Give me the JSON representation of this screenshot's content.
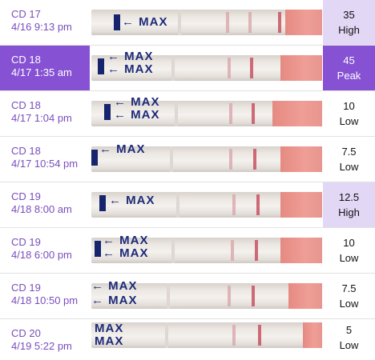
{
  "rows": [
    {
      "cd": "CD 17",
      "time": "4/16 9:13 pm",
      "value": "35",
      "level": "High",
      "selected": false
    },
    {
      "cd": "CD 18",
      "time": "4/17 1:35 am",
      "value": "45",
      "level": "Peak",
      "selected": true
    },
    {
      "cd": "CD 18",
      "time": "4/17 1:04 pm",
      "value": "10",
      "level": "Low",
      "selected": false
    },
    {
      "cd": "CD 18",
      "time": "4/17 10:54 pm",
      "value": "7.5",
      "level": "Low",
      "selected": false
    },
    {
      "cd": "CD 19",
      "time": "4/18 8:00 am",
      "value": "12.5",
      "level": "High",
      "selected": false
    },
    {
      "cd": "CD 19",
      "time": "4/18 6:00 pm",
      "value": "10",
      "level": "Low",
      "selected": false
    },
    {
      "cd": "CD 19",
      "time": "4/18 10:50 pm",
      "value": "7.5",
      "level": "Low",
      "selected": false
    },
    {
      "cd": "CD 20",
      "time": "4/19 5:22 pm",
      "value": "5",
      "level": "Low",
      "selected": false
    }
  ],
  "strip_text": {
    "max": "MAX",
    "arrow_max": "← MAX"
  },
  "colors": {
    "accent": "#8652d3",
    "highlight": "#e3d7f6",
    "date_text": "#7a4dbd"
  }
}
